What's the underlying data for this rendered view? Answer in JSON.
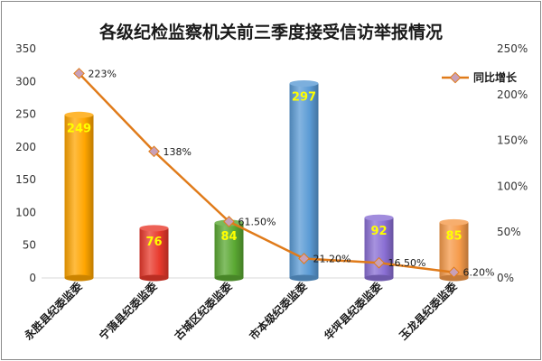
{
  "chart_data": {
    "type": "bar",
    "title": "各级纪检监察机关前三季度接受信访举报情况",
    "categories": [
      "永胜县纪委监委",
      "宁蒗县纪委监委",
      "古城区纪委监委",
      "市本级纪委监委",
      "华坪县纪委监委",
      "玉龙县纪委监委"
    ],
    "bars": {
      "values": [
        249,
        76,
        84,
        297,
        92,
        85
      ],
      "labels": [
        "249",
        "76",
        "84",
        "297",
        "92",
        "85"
      ],
      "colors": [
        "#ffa500",
        "#e8392c",
        "#5aa832",
        "#5b9bd5",
        "#8a6fd4",
        "#f59a4a"
      ],
      "ylim": [
        0,
        350
      ],
      "yticks": [
        "0",
        "50",
        "100",
        "150",
        "200",
        "250",
        "300",
        "350"
      ]
    },
    "line": {
      "name": "同比增长",
      "values": [
        223,
        138,
        61.5,
        21.2,
        16.5,
        6.2
      ],
      "labels": [
        "223%",
        "138%",
        "61.50%",
        "21.20%",
        "16.50%",
        "6.20%"
      ],
      "color": "#e07b1a",
      "marker_color": "#c8a0b8",
      "ylim": [
        0,
        250
      ],
      "yticks": [
        "0%",
        "50%",
        "100%",
        "150%",
        "200%",
        "250%"
      ]
    },
    "legend": {
      "label": "同比增长",
      "position": "top-right"
    },
    "grid": false
  }
}
